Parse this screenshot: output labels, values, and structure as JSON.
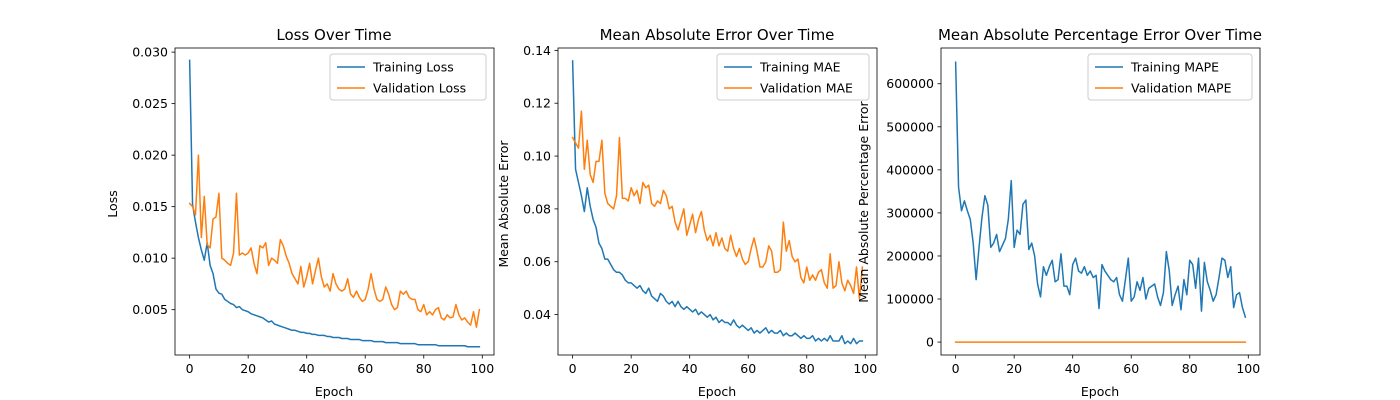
{
  "chart_data": [
    {
      "type": "line",
      "title": "Loss Over Time",
      "xlabel": "Epoch",
      "ylabel": "Loss",
      "xlim": [
        -5,
        104
      ],
      "ylim": [
        0.0006,
        0.0304
      ],
      "xticks": [
        0,
        20,
        40,
        60,
        80,
        100
      ],
      "yticks": [
        0.005,
        0.01,
        0.015,
        0.02,
        0.025,
        0.03
      ],
      "ytick_labels": [
        "0.005",
        "0.010",
        "0.015",
        "0.020",
        "0.025",
        "0.030"
      ],
      "legend": "top-right",
      "grid": false,
      "series": [
        {
          "name": "Training Loss",
          "color": "#1f77b4",
          "values": [
            0.0292,
            0.0152,
            0.0135,
            0.012,
            0.0108,
            0.0098,
            0.0115,
            0.0093,
            0.0085,
            0.007,
            0.0066,
            0.0065,
            0.006,
            0.0058,
            0.0056,
            0.0055,
            0.0052,
            0.0053,
            0.005,
            0.0049,
            0.0048,
            0.0046,
            0.0045,
            0.0044,
            0.0043,
            0.0042,
            0.004,
            0.0038,
            0.0039,
            0.0036,
            0.0035,
            0.0034,
            0.0033,
            0.0032,
            0.0031,
            0.003,
            0.003,
            0.0029,
            0.0028,
            0.0028,
            0.0027,
            0.0027,
            0.0026,
            0.0026,
            0.0025,
            0.0025,
            0.0025,
            0.0024,
            0.0024,
            0.0023,
            0.0023,
            0.0023,
            0.0022,
            0.0022,
            0.0022,
            0.0021,
            0.0021,
            0.0021,
            0.0021,
            0.002,
            0.002,
            0.002,
            0.002,
            0.0019,
            0.0019,
            0.0019,
            0.0019,
            0.0018,
            0.0018,
            0.0018,
            0.0018,
            0.0018,
            0.0017,
            0.0017,
            0.0017,
            0.0017,
            0.0017,
            0.0017,
            0.0016,
            0.0016,
            0.0016,
            0.0016,
            0.0016,
            0.0016,
            0.0016,
            0.0015,
            0.0015,
            0.0015,
            0.0015,
            0.0015,
            0.0015,
            0.0015,
            0.0015,
            0.0015,
            0.0015,
            0.0014,
            0.0014,
            0.0014,
            0.0014,
            0.0014
          ]
        },
        {
          "name": "Validation Loss",
          "color": "#ff7f0e",
          "values": [
            0.0153,
            0.015,
            0.0142,
            0.02,
            0.012,
            0.016,
            0.0113,
            0.011,
            0.0138,
            0.014,
            0.0163,
            0.01,
            0.0098,
            0.0095,
            0.0093,
            0.0105,
            0.0163,
            0.0103,
            0.0105,
            0.0103,
            0.0105,
            0.011,
            0.0095,
            0.0085,
            0.0112,
            0.011,
            0.0115,
            0.0093,
            0.01,
            0.0098,
            0.0095,
            0.0118,
            0.0112,
            0.0102,
            0.0095,
            0.0085,
            0.008,
            0.0075,
            0.0092,
            0.0072,
            0.0082,
            0.0095,
            0.0075,
            0.0088,
            0.01,
            0.0082,
            0.0072,
            0.0075,
            0.0068,
            0.0085,
            0.0075,
            0.007,
            0.0068,
            0.007,
            0.008,
            0.0065,
            0.0062,
            0.0068,
            0.0062,
            0.0058,
            0.006,
            0.007,
            0.0085,
            0.007,
            0.006,
            0.0058,
            0.006,
            0.0072,
            0.0065,
            0.0055,
            0.005,
            0.0052,
            0.0068,
            0.0065,
            0.0068,
            0.0062,
            0.006,
            0.006,
            0.005,
            0.0048,
            0.0055,
            0.0045,
            0.0048,
            0.0045,
            0.005,
            0.0052,
            0.0042,
            0.004,
            0.0045,
            0.0042,
            0.0043,
            0.0055,
            0.0045,
            0.004,
            0.0042,
            0.0038,
            0.0035,
            0.0048,
            0.0033,
            0.005
          ]
        }
      ]
    },
    {
      "type": "line",
      "title": "Mean Absolute Error Over Time",
      "xlabel": "Epoch",
      "ylabel": "Mean Absolute Error",
      "xlim": [
        -5,
        104
      ],
      "ylim": [
        0.0247,
        0.1409
      ],
      "xticks": [
        0,
        20,
        40,
        60,
        80,
        100
      ],
      "yticks": [
        0.04,
        0.06,
        0.08,
        0.1,
        0.12,
        0.14
      ],
      "ytick_labels": [
        "0.04",
        "0.06",
        "0.08",
        "0.10",
        "0.12",
        "0.14"
      ],
      "legend": "top-right",
      "grid": false,
      "series": [
        {
          "name": "Training MAE",
          "color": "#1f77b4",
          "values": [
            0.136,
            0.095,
            0.09,
            0.085,
            0.079,
            0.088,
            0.081,
            0.076,
            0.073,
            0.067,
            0.065,
            0.061,
            0.061,
            0.059,
            0.057,
            0.056,
            0.056,
            0.055,
            0.053,
            0.052,
            0.052,
            0.051,
            0.05,
            0.051,
            0.049,
            0.048,
            0.05,
            0.047,
            0.046,
            0.045,
            0.048,
            0.047,
            0.045,
            0.044,
            0.045,
            0.043,
            0.045,
            0.043,
            0.042,
            0.043,
            0.042,
            0.041,
            0.042,
            0.04,
            0.041,
            0.04,
            0.039,
            0.04,
            0.038,
            0.039,
            0.037,
            0.038,
            0.037,
            0.037,
            0.036,
            0.038,
            0.036,
            0.035,
            0.036,
            0.035,
            0.034,
            0.035,
            0.033,
            0.034,
            0.033,
            0.034,
            0.035,
            0.033,
            0.034,
            0.033,
            0.033,
            0.034,
            0.032,
            0.033,
            0.032,
            0.032,
            0.033,
            0.032,
            0.031,
            0.032,
            0.031,
            0.031,
            0.032,
            0.03,
            0.031,
            0.03,
            0.031,
            0.03,
            0.032,
            0.03,
            0.03,
            0.03,
            0.032,
            0.029,
            0.03,
            0.029,
            0.031,
            0.029,
            0.03,
            0.03
          ]
        },
        {
          "name": "Validation MAE",
          "color": "#ff7f0e",
          "values": [
            0.107,
            0.105,
            0.103,
            0.117,
            0.095,
            0.106,
            0.093,
            0.09,
            0.098,
            0.098,
            0.106,
            0.086,
            0.082,
            0.081,
            0.08,
            0.085,
            0.107,
            0.084,
            0.084,
            0.083,
            0.088,
            0.085,
            0.087,
            0.082,
            0.09,
            0.088,
            0.089,
            0.082,
            0.081,
            0.083,
            0.082,
            0.087,
            0.085,
            0.08,
            0.081,
            0.075,
            0.072,
            0.076,
            0.08,
            0.07,
            0.074,
            0.078,
            0.071,
            0.076,
            0.079,
            0.072,
            0.068,
            0.07,
            0.066,
            0.071,
            0.066,
            0.069,
            0.065,
            0.064,
            0.07,
            0.065,
            0.062,
            0.065,
            0.061,
            0.059,
            0.06,
            0.065,
            0.069,
            0.064,
            0.058,
            0.058,
            0.06,
            0.066,
            0.064,
            0.056,
            0.056,
            0.057,
            0.075,
            0.064,
            0.068,
            0.062,
            0.06,
            0.061,
            0.054,
            0.052,
            0.058,
            0.053,
            0.055,
            0.053,
            0.056,
            0.057,
            0.052,
            0.05,
            0.063,
            0.05,
            0.051,
            0.06,
            0.052,
            0.049,
            0.053,
            0.051,
            0.048,
            0.058,
            0.046,
            0.058
          ]
        }
      ]
    },
    {
      "type": "line",
      "title": "Mean Absolute Percentage Error Over Time",
      "xlabel": "Epoch",
      "ylabel": "Mean Absolute Percentage Error",
      "xlim": [
        -5,
        104
      ],
      "ylim": [
        -30000,
        683000
      ],
      "xticks": [
        0,
        20,
        40,
        60,
        80,
        100
      ],
      "yticks": [
        0,
        100000,
        200000,
        300000,
        400000,
        500000,
        600000
      ],
      "ytick_labels": [
        "0",
        "100000",
        "200000",
        "300000",
        "400000",
        "500000",
        "600000"
      ],
      "legend": "top-right",
      "grid": false,
      "series": [
        {
          "name": "Training MAPE",
          "color": "#1f77b4",
          "values": [
            650000,
            360000,
            305000,
            328000,
            305000,
            285000,
            230000,
            145000,
            220000,
            290000,
            340000,
            318000,
            220000,
            230000,
            250000,
            210000,
            225000,
            240000,
            285000,
            375000,
            220000,
            260000,
            250000,
            320000,
            330000,
            215000,
            230000,
            200000,
            135000,
            105000,
            175000,
            155000,
            175000,
            190000,
            140000,
            145000,
            205000,
            130000,
            130000,
            110000,
            180000,
            195000,
            165000,
            160000,
            175000,
            155000,
            165000,
            150000,
            155000,
            78000,
            180000,
            165000,
            155000,
            145000,
            140000,
            150000,
            110000,
            95000,
            145000,
            195000,
            95000,
            105000,
            140000,
            120000,
            150000,
            100000,
            125000,
            130000,
            135000,
            105000,
            85000,
            115000,
            210000,
            165000,
            85000,
            110000,
            130000,
            75000,
            145000,
            110000,
            190000,
            180000,
            125000,
            195000,
            72000,
            185000,
            140000,
            120000,
            95000,
            110000,
            150000,
            195000,
            190000,
            150000,
            175000,
            80000,
            110000,
            115000,
            80000,
            58000
          ]
        },
        {
          "name": "Validation MAPE",
          "color": "#ff7f0e",
          "values": [
            0,
            0,
            0,
            0,
            0,
            0,
            0,
            0,
            0,
            0,
            0,
            0,
            0,
            0,
            0,
            0,
            0,
            0,
            0,
            0,
            0,
            0,
            0,
            0,
            0,
            0,
            0,
            0,
            0,
            0,
            0,
            0,
            0,
            0,
            0,
            0,
            0,
            0,
            0,
            0,
            0,
            0,
            0,
            0,
            0,
            0,
            0,
            0,
            0,
            0,
            0,
            0,
            0,
            0,
            0,
            0,
            0,
            0,
            0,
            0,
            0,
            0,
            0,
            0,
            0,
            0,
            0,
            0,
            0,
            0,
            0,
            0,
            0,
            0,
            0,
            0,
            0,
            0,
            0,
            0,
            0,
            0,
            0,
            0,
            0,
            0,
            0,
            0,
            0,
            0,
            0,
            0,
            0,
            0,
            0,
            0,
            0,
            0,
            0,
            0
          ]
        }
      ]
    }
  ]
}
